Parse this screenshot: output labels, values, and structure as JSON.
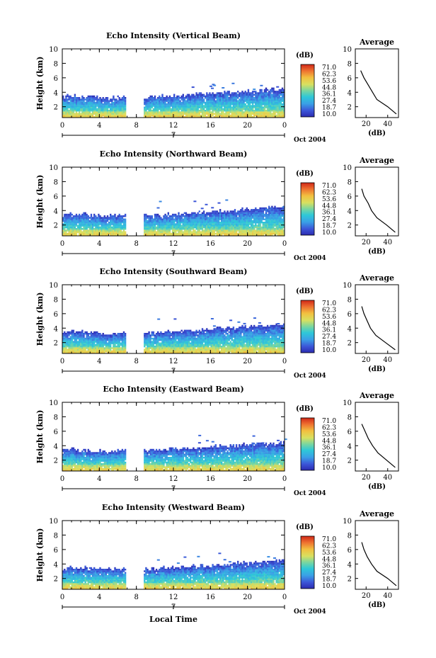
{
  "figure": {
    "xlabel": "Local Time",
    "date_left": "7",
    "date_right": "Oct 2004",
    "colorbar_unit": "(dB)",
    "colorbar_ticks": [
      "71.0",
      "62.3",
      "53.6",
      "44.8",
      "36.1",
      "27.4",
      "18.7",
      "10.0"
    ],
    "avg_title": "Average",
    "avg_xlabel": "(dB)",
    "ylabel": "Height (km)"
  },
  "chart_data": [
    {
      "type": "heatmap",
      "title": "Echo Intensity (Vertical Beam)",
      "ylabel": "Height (km)",
      "xlabel": "Local Time",
      "x_ticks": [
        "0",
        "4",
        "8",
        "12",
        "16",
        "20",
        "0"
      ],
      "y_ticks": [
        "2",
        "4",
        "6",
        "8",
        "10"
      ],
      "xlim": [
        0,
        24
      ],
      "ylim": [
        0.5,
        10
      ],
      "gap": [
        6.8,
        8.8
      ],
      "colorbar": {
        "min": 10.0,
        "max": 71.0,
        "unit": "dB"
      },
      "average_profile": {
        "x_ticks": [
          "20",
          "40"
        ],
        "xlim": [
          10,
          50
        ],
        "y": [
          1,
          2,
          3,
          4,
          5,
          6,
          7
        ],
        "x": [
          48,
          40,
          30,
          26,
          22,
          18,
          15
        ]
      }
    },
    {
      "type": "heatmap",
      "title": "Echo Intensity (Northward Beam)",
      "ylabel": "Height (km)",
      "xlabel": "Local Time",
      "x_ticks": [
        "0",
        "4",
        "8",
        "12",
        "16",
        "20",
        "0"
      ],
      "y_ticks": [
        "2",
        "4",
        "6",
        "8",
        "10"
      ],
      "xlim": [
        0,
        24
      ],
      "ylim": [
        0.5,
        10
      ],
      "gap": [
        6.8,
        8.8
      ],
      "colorbar": {
        "min": 10.0,
        "max": 71.0,
        "unit": "dB"
      },
      "average_profile": {
        "x_ticks": [
          "20",
          "40"
        ],
        "xlim": [
          10,
          50
        ],
        "y": [
          1,
          2,
          3,
          4,
          5,
          6,
          7
        ],
        "x": [
          47,
          39,
          30,
          25,
          22,
          18,
          16
        ]
      }
    },
    {
      "type": "heatmap",
      "title": "Echo Intensity (Southward Beam)",
      "ylabel": "Height (km)",
      "xlabel": "Local Time",
      "x_ticks": [
        "0",
        "4",
        "8",
        "12",
        "16",
        "20",
        "0"
      ],
      "y_ticks": [
        "2",
        "4",
        "6",
        "8",
        "10"
      ],
      "xlim": [
        0,
        24
      ],
      "ylim": [
        0.5,
        10
      ],
      "gap": [
        6.8,
        8.8
      ],
      "colorbar": {
        "min": 10.0,
        "max": 71.0,
        "unit": "dB"
      },
      "average_profile": {
        "x_ticks": [
          "20",
          "40"
        ],
        "xlim": [
          10,
          50
        ],
        "y": [
          1,
          2,
          3,
          4,
          5,
          6,
          7
        ],
        "x": [
          47,
          38,
          29,
          24,
          21,
          18,
          16
        ]
      }
    },
    {
      "type": "heatmap",
      "title": "Echo Intensity (Eastward Beam)",
      "ylabel": "Height (km)",
      "xlabel": "Local Time",
      "x_ticks": [
        "0",
        "4",
        "8",
        "12",
        "16",
        "20",
        "0"
      ],
      "y_ticks": [
        "2",
        "4",
        "6",
        "8",
        "10"
      ],
      "xlim": [
        0,
        24
      ],
      "ylim": [
        0.5,
        10
      ],
      "gap": [
        6.8,
        8.8
      ],
      "colorbar": {
        "min": 10.0,
        "max": 71.0,
        "unit": "dB"
      },
      "average_profile": {
        "x_ticks": [
          "20",
          "40"
        ],
        "xlim": [
          10,
          50
        ],
        "y": [
          1,
          2,
          3,
          4,
          5,
          6,
          7
        ],
        "x": [
          47,
          39,
          31,
          26,
          22,
          19,
          16
        ]
      }
    },
    {
      "type": "heatmap",
      "title": "Echo Intensity (Westward Beam)",
      "ylabel": "Height (km)",
      "xlabel": "Local Time",
      "x_ticks": [
        "0",
        "4",
        "8",
        "12",
        "16",
        "20",
        "0"
      ],
      "y_ticks": [
        "2",
        "4",
        "6",
        "8",
        "10"
      ],
      "xlim": [
        0,
        24
      ],
      "ylim": [
        0.5,
        10
      ],
      "gap": [
        6.8,
        8.8
      ],
      "colorbar": {
        "min": 10.0,
        "max": 71.0,
        "unit": "dB"
      },
      "average_profile": {
        "x_ticks": [
          "20",
          "40"
        ],
        "xlim": [
          10,
          50
        ],
        "y": [
          1,
          2,
          3,
          4,
          5,
          6,
          7
        ],
        "x": [
          48,
          40,
          30,
          25,
          21,
          18,
          16
        ]
      }
    }
  ]
}
